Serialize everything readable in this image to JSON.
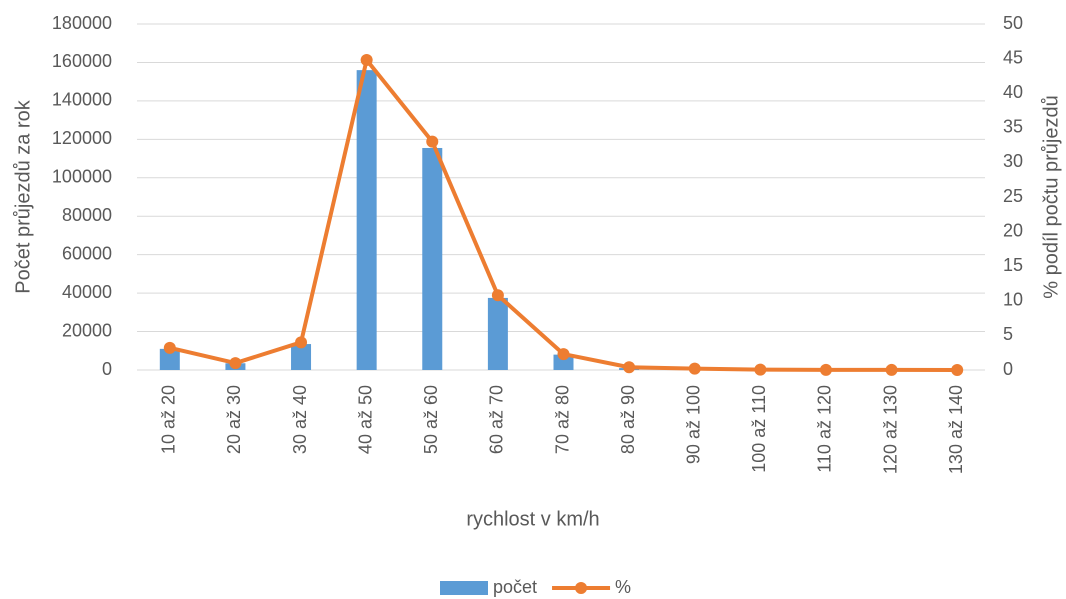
{
  "chart_data": {
    "type": "bar",
    "x_label": "rychlost v km/h",
    "y_label": "Počet průjezdů za rok",
    "y2_label": "% podíl počtu průjezdů",
    "categories": [
      "10 až 20",
      "20 až 30",
      "30 až 40",
      "40 až 50",
      "50 až 60",
      "60 až 70",
      "70 až 80",
      "80 až 90",
      "90 až 100",
      "100 až 110",
      "110 až 120",
      "120 až 130",
      "130 až 140"
    ],
    "series": [
      {
        "name": "počet",
        "type": "bar",
        "color": "#5b9bd5",
        "values": [
          11000,
          3500,
          13500,
          156000,
          115500,
          37500,
          8000,
          1000,
          300,
          100,
          50,
          20,
          10
        ]
      },
      {
        "name": "%",
        "type": "line",
        "axis": "y2",
        "color": "#ed7d31",
        "values": [
          3.2,
          1.0,
          4.0,
          44.8,
          33.0,
          10.8,
          2.3,
          0.4,
          0.2,
          0.05,
          0.02,
          0.01,
          0
        ]
      }
    ],
    "ylim": [
      0,
      180000
    ],
    "yticks": [
      0,
      20000,
      40000,
      60000,
      80000,
      100000,
      120000,
      140000,
      160000,
      180000
    ],
    "y2lim": [
      0,
      50
    ],
    "y2ticks": [
      0,
      5,
      10,
      15,
      20,
      25,
      30,
      35,
      40,
      45,
      50
    ],
    "grid": true,
    "legend": "bottom"
  }
}
